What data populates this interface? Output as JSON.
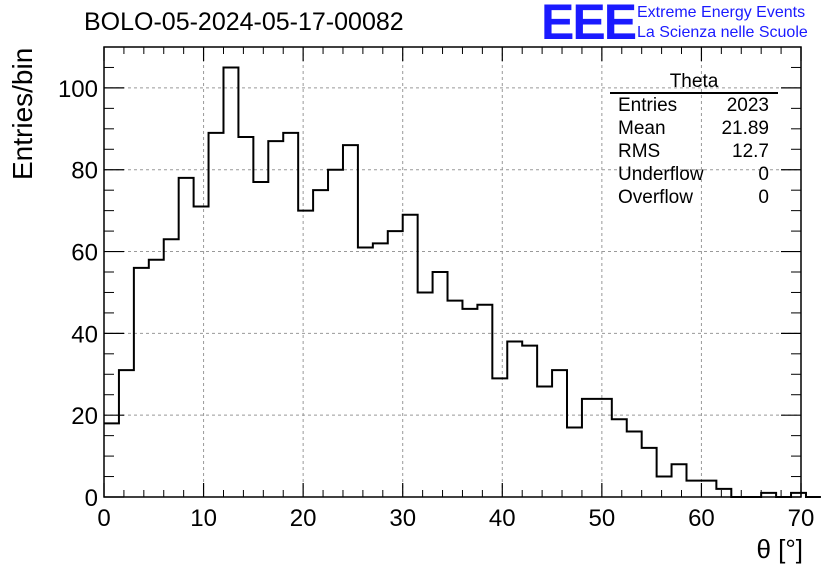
{
  "header": {
    "run_title": "BOLO-05-2024-05-17-00082",
    "logo_text": "EEE",
    "logo_line1": "Extreme Energy Events",
    "logo_line2": "La Scienza nelle Scuole",
    "logo_color": "#1a1aff"
  },
  "stats": {
    "title": "Theta",
    "rows": [
      {
        "label": "Entries",
        "value": "2023"
      },
      {
        "label": "Mean",
        "value": "21.89"
      },
      {
        "label": "RMS",
        "value": "12.7"
      },
      {
        "label": "Underflow",
        "value": "0"
      },
      {
        "label": "Overflow",
        "value": "0"
      }
    ]
  },
  "chart_data": {
    "type": "bar",
    "histogram": true,
    "xlabel": "θ [°]",
    "ylabel": "Entries/bin",
    "xlim": [
      0,
      70
    ],
    "ylim": [
      0,
      110
    ],
    "grid": true,
    "bin_width": 1.5,
    "x_bin_edges_start": 0,
    "x_ticks": [
      0,
      10,
      20,
      30,
      40,
      50,
      60,
      70
    ],
    "y_ticks": [
      0,
      20,
      40,
      60,
      80,
      100
    ],
    "values": [
      18,
      31,
      56,
      58,
      63,
      78,
      71,
      89,
      105,
      88,
      77,
      87,
      89,
      70,
      75,
      80,
      86,
      61,
      62,
      65,
      69,
      50,
      55,
      48,
      46,
      47,
      29,
      38,
      37,
      27,
      31,
      17,
      24,
      24,
      19,
      16,
      12,
      5,
      8,
      4,
      4,
      2,
      0,
      0,
      1,
      0,
      1,
      0
    ],
    "line_color": "#000000"
  }
}
